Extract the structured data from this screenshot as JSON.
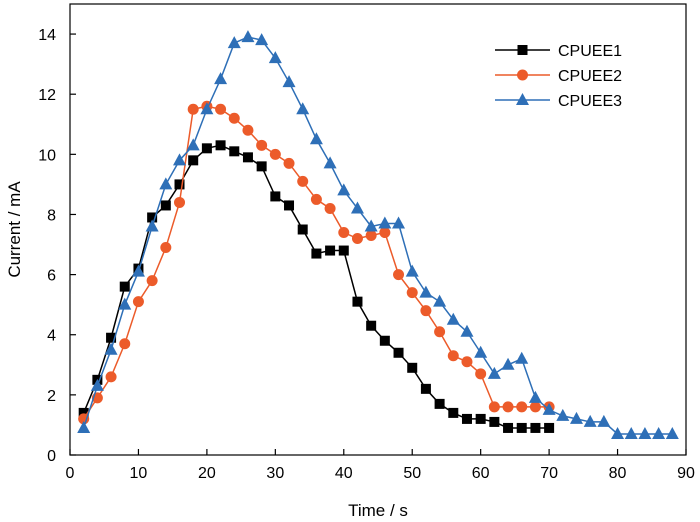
{
  "chart_data": {
    "type": "line",
    "xlabel": "Time / s",
    "ylabel": "Current / mA",
    "xlim": [
      0,
      90
    ],
    "ylim": [
      0,
      15
    ],
    "xticks": [
      0,
      10,
      20,
      30,
      40,
      50,
      60,
      70,
      80,
      90
    ],
    "yticks": [
      0,
      2,
      4,
      6,
      8,
      10,
      12,
      14
    ],
    "grid": false,
    "legend_position": "top-right",
    "series": [
      {
        "name": "CPUEE1",
        "color": "#000000",
        "marker": "square",
        "x": [
          2,
          4,
          6,
          8,
          10,
          12,
          14,
          16,
          18,
          20,
          22,
          24,
          26,
          28,
          30,
          32,
          34,
          36,
          38,
          40,
          42,
          44,
          46,
          48,
          50,
          52,
          54,
          56,
          58,
          60,
          62,
          64,
          66,
          68,
          70
        ],
        "y": [
          1.4,
          2.5,
          3.9,
          5.6,
          6.2,
          7.9,
          8.3,
          9.0,
          9.8,
          10.2,
          10.3,
          10.1,
          9.9,
          9.6,
          8.6,
          8.3,
          7.5,
          6.7,
          6.8,
          6.8,
          5.1,
          4.3,
          3.8,
          3.4,
          2.9,
          2.2,
          1.7,
          1.4,
          1.2,
          1.2,
          1.1,
          0.9,
          0.9,
          0.9,
          0.9
        ]
      },
      {
        "name": "CPUEE2",
        "color": "#EC5B2A",
        "marker": "circle",
        "x": [
          2,
          4,
          6,
          8,
          10,
          12,
          14,
          16,
          18,
          20,
          22,
          24,
          26,
          28,
          30,
          32,
          34,
          36,
          38,
          40,
          42,
          44,
          46,
          48,
          50,
          52,
          54,
          56,
          58,
          60,
          62,
          64,
          66,
          68,
          70
        ],
        "y": [
          1.2,
          1.9,
          2.6,
          3.7,
          5.1,
          5.8,
          6.9,
          8.4,
          11.5,
          11.6,
          11.5,
          11.2,
          10.8,
          10.3,
          10.0,
          9.7,
          9.1,
          8.5,
          8.2,
          7.4,
          7.2,
          7.3,
          7.4,
          6.0,
          5.4,
          4.8,
          4.1,
          3.3,
          3.1,
          2.7,
          1.6,
          1.6,
          1.6,
          1.6,
          1.6
        ]
      },
      {
        "name": "CPUEE3",
        "color": "#2E6FB7",
        "marker": "triangle",
        "x": [
          2,
          4,
          6,
          8,
          10,
          12,
          14,
          16,
          18,
          20,
          22,
          24,
          26,
          28,
          30,
          32,
          34,
          36,
          38,
          40,
          42,
          44,
          46,
          48,
          50,
          52,
          54,
          56,
          58,
          60,
          62,
          64,
          66,
          68,
          70,
          72,
          74,
          76,
          78,
          80,
          82,
          84,
          86,
          88
        ],
        "y": [
          0.9,
          2.3,
          3.5,
          5.0,
          6.1,
          7.6,
          9.0,
          9.8,
          10.3,
          11.5,
          12.5,
          13.7,
          13.9,
          13.8,
          13.2,
          12.4,
          11.5,
          10.5,
          9.7,
          8.8,
          8.2,
          7.6,
          7.7,
          7.7,
          6.1,
          5.4,
          5.1,
          4.5,
          4.1,
          3.4,
          2.7,
          3.0,
          3.2,
          1.9,
          1.5,
          1.3,
          1.2,
          1.1,
          1.1,
          0.7,
          0.7,
          0.7,
          0.7,
          0.7
        ]
      }
    ]
  }
}
